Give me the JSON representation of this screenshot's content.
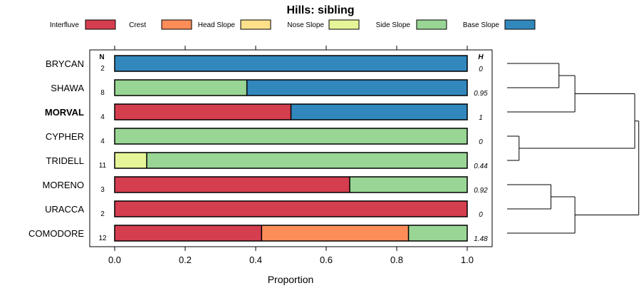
{
  "chart_data": {
    "type": "stacked-bar-horizontal",
    "title": "Hills: sibling",
    "xlabel": "Proportion",
    "xlim": [
      0,
      1
    ],
    "xticks": [
      0,
      0.2,
      0.4,
      0.6,
      0.8,
      1
    ],
    "tick_labels": [
      "0.0",
      "0.2",
      "0.4",
      "0.6",
      "0.8",
      "1.0"
    ],
    "n_header": "N",
    "h_header": "H",
    "legend_placement": "top",
    "classes": [
      {
        "name": "Interfluve",
        "color": "#d53e4f"
      },
      {
        "name": "Crest",
        "color": "#fc8d59"
      },
      {
        "name": "Head Slope",
        "color": "#fee08b"
      },
      {
        "name": "Nose Slope",
        "color": "#e6f598"
      },
      {
        "name": "Side Slope",
        "color": "#99d594"
      },
      {
        "name": "Base Slope",
        "color": "#3288bd"
      }
    ],
    "rows": [
      {
        "label": "BRYCAN",
        "bold": false,
        "n": "2",
        "h": "0",
        "values": [
          0,
          0,
          0,
          0,
          0,
          1
        ]
      },
      {
        "label": "SHAWA",
        "bold": false,
        "n": "8",
        "h": "0.95",
        "values": [
          0,
          0,
          0,
          0,
          0.375,
          0.625
        ]
      },
      {
        "label": "MORVAL",
        "bold": true,
        "n": "4",
        "h": "1",
        "values": [
          0.5,
          0,
          0,
          0,
          0,
          0.5
        ]
      },
      {
        "label": "CYPHER",
        "bold": false,
        "n": "4",
        "h": "0",
        "values": [
          0,
          0,
          0,
          0,
          1,
          0
        ]
      },
      {
        "label": "TRIDELL",
        "bold": false,
        "n": "11",
        "h": "0.44",
        "values": [
          0,
          0,
          0,
          0.0909,
          0.9091,
          0
        ]
      },
      {
        "label": "MORENO",
        "bold": false,
        "n": "3",
        "h": "0.92",
        "values": [
          0.6667,
          0,
          0,
          0,
          0.3333,
          0
        ]
      },
      {
        "label": "URACCA",
        "bold": false,
        "n": "2",
        "h": "0",
        "values": [
          1,
          0,
          0,
          0,
          0,
          0
        ]
      },
      {
        "label": "COMODORE",
        "bold": false,
        "n": "12",
        "h": "1.48",
        "values": [
          0.4167,
          0.4167,
          0,
          0,
          0.1667,
          0
        ]
      }
    ],
    "dendrogram": {
      "leaf_order": [
        "BRYCAN",
        "SHAWA",
        "MORVAL",
        "CYPHER",
        "TRIDELL",
        "MORENO",
        "URACCA",
        "COMODORE"
      ],
      "merges": [
        {
          "a": "BRYCAN",
          "b": "SHAWA",
          "height": 0.13
        },
        {
          "a": "M1",
          "b": "MORVAL",
          "height": 0.17
        },
        {
          "a": "CYPHER",
          "b": "TRIDELL",
          "height": 0.03
        },
        {
          "a": "MORENO",
          "b": "URACCA",
          "height": 0.11
        },
        {
          "a": "M4",
          "b": "COMODORE",
          "height": 0.17
        },
        {
          "a": "M2",
          "b": "M3",
          "height": 0.32
        },
        {
          "a": "M6",
          "b": "M5",
          "height": 0.33
        }
      ]
    }
  }
}
